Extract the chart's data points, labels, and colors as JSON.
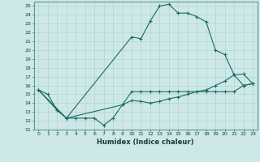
{
  "xlabel": "Humidex (Indice chaleur)",
  "ylabel": "",
  "xlim": [
    -0.5,
    23.5
  ],
  "ylim": [
    11,
    25.5
  ],
  "yticks": [
    11,
    12,
    13,
    14,
    15,
    16,
    17,
    18,
    19,
    20,
    21,
    22,
    23,
    24,
    25
  ],
  "xticks": [
    0,
    1,
    2,
    3,
    4,
    5,
    6,
    7,
    8,
    9,
    10,
    11,
    12,
    13,
    14,
    15,
    16,
    17,
    18,
    19,
    20,
    21,
    22,
    23
  ],
  "background_color": "#cee8e8",
  "grid_color": "#b0d4d4",
  "line_color": "#1a6b60",
  "line1_x": [
    0,
    1,
    2,
    3,
    4,
    5,
    6,
    7,
    8,
    9,
    10,
    11,
    12,
    13,
    14,
    15,
    16,
    17,
    18,
    19,
    20,
    21,
    22,
    23
  ],
  "line1_y": [
    15.5,
    15.0,
    13.2,
    12.3,
    12.3,
    12.3,
    12.3,
    11.5,
    12.3,
    13.8,
    15.3,
    15.3,
    15.3,
    15.3,
    15.3,
    15.3,
    15.3,
    15.3,
    15.3,
    15.3,
    15.3,
    15.3,
    16.0,
    16.2
  ],
  "line2_x": [
    0,
    2,
    3,
    10,
    11,
    12,
    13,
    14,
    15,
    16,
    17,
    18,
    19,
    20,
    21,
    22,
    23
  ],
  "line2_y": [
    15.5,
    13.2,
    12.3,
    21.5,
    21.3,
    23.3,
    25.0,
    25.2,
    24.2,
    24.2,
    23.8,
    23.2,
    20.0,
    19.5,
    17.2,
    16.0,
    16.2
  ],
  "line3_x": [
    0,
    3,
    9,
    10,
    11,
    12,
    13,
    14,
    15,
    16,
    17,
    18,
    19,
    20,
    21,
    22,
    23
  ],
  "line3_y": [
    15.5,
    12.3,
    13.8,
    14.3,
    14.2,
    14.0,
    14.2,
    14.5,
    14.7,
    15.0,
    15.3,
    15.5,
    16.0,
    16.5,
    17.2,
    17.3,
    16.2
  ]
}
